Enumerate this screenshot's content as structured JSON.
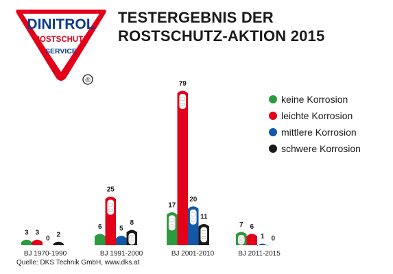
{
  "logo": {
    "line1": "DINITROL",
    "line2": "ROSTSCHUTZ",
    "line3": "SERVICE",
    "reg": "®"
  },
  "title": {
    "line1": "TESTERGEBNIS DER",
    "line2": "ROSTSCHUTZ-AKTION 2015"
  },
  "source": "Quelle: DKS Technik GmbH, www.dks.at",
  "colors": {
    "green": "#2c9a3f",
    "red": "#e2001a",
    "blue": "#1158a8",
    "black": "#1a1a1a",
    "brand_blue": "#0b3c8c",
    "brand_red": "#e2001a"
  },
  "chart_data": {
    "type": "bar",
    "categories": [
      "BJ 1970-1990",
      "BJ 1991-2000",
      "BJ 2001-2010",
      "BJ 2011-2015"
    ],
    "series": [
      {
        "name": "keine Korrosion",
        "color": "#2c9a3f",
        "values": [
          3,
          6,
          17,
          7
        ]
      },
      {
        "name": "leichte Korrosion",
        "color": "#e2001a",
        "values": [
          3,
          25,
          79,
          6
        ]
      },
      {
        "name": "mittlere Korrosion",
        "color": "#1158a8",
        "values": [
          0,
          5,
          20,
          1
        ]
      },
      {
        "name": "schwere Korrosion",
        "color": "#1a1a1a",
        "values": [
          2,
          8,
          11,
          0
        ]
      }
    ],
    "legend_position": "right",
    "grid": false
  }
}
